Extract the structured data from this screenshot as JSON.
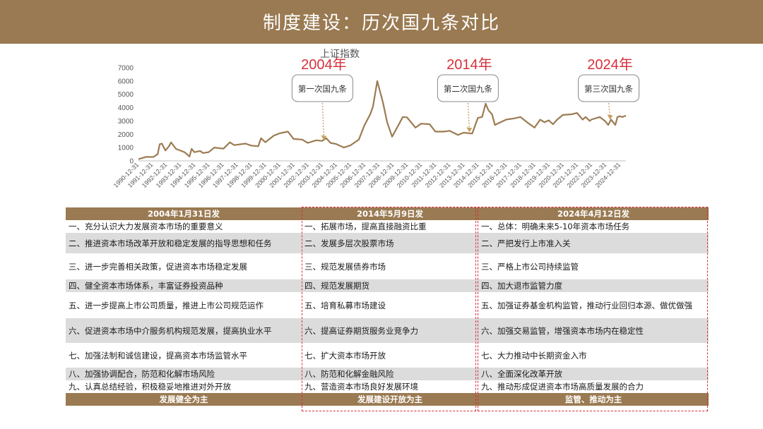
{
  "slide_title": "制度建设：历次国九条对比",
  "chart_data": {
    "type": "line",
    "title": "上证指数",
    "ylim": [
      0,
      7000
    ],
    "yticks": [
      0,
      1000,
      2000,
      3000,
      4000,
      5000,
      6000,
      7000
    ],
    "x_tick_labels": [
      "1990-12-31",
      "1991-12-31",
      "1992-12-31",
      "1993-12-31",
      "1994-12-31",
      "1995-12-31",
      "1996-12-31",
      "1997-12-31",
      "1998-12-31",
      "1999-12-31",
      "2000-12-31",
      "2001-12-31",
      "2002-12-31",
      "2003-12-31",
      "2004-12-31",
      "2005-12-31",
      "2006-12-31",
      "2007-12-31",
      "2008-12-31",
      "2009-12-31",
      "2010-12-31",
      "2011-12-31",
      "2012-12-31",
      "2013-12-31",
      "2014-12-31",
      "2015-12-31",
      "2016-12-31",
      "2017-12-31",
      "2018-12-31",
      "2019-12-31",
      "2020-12-31",
      "2021-12-31",
      "2022-12-31",
      "2023-12-31",
      "2024-12-31"
    ],
    "series": [
      {
        "x": [
          1990.95,
          1991.5,
          1992.0,
          1992.3,
          1992.45,
          1992.6,
          1992.85,
          1993.1,
          1993.25,
          1993.6,
          1994.2,
          1994.55,
          1994.7,
          1994.9,
          1995.3,
          1995.5,
          1995.9,
          1996.3,
          1996.95,
          1997.4,
          1997.7,
          1998.5,
          1998.9,
          1999.4,
          1999.6,
          1999.9,
          2000.5,
          2000.9,
          2001.5,
          2001.9,
          2002.5,
          2002.9,
          2003.5,
          2003.9,
          2004.2,
          2004.5,
          2004.9,
          2005.45,
          2005.9,
          2006.5,
          2006.9,
          2007.3,
          2007.5,
          2007.8,
          2008.2,
          2008.5,
          2008.85,
          2009.3,
          2009.6,
          2009.9,
          2010.5,
          2010.9,
          2011.5,
          2011.9,
          2012.5,
          2012.9,
          2013.5,
          2013.9,
          2014.5,
          2014.9,
          2015.2,
          2015.45,
          2015.65,
          2015.9,
          2016.1,
          2016.5,
          2016.9,
          2017.5,
          2017.9,
          2018.5,
          2018.9,
          2019.3,
          2019.6,
          2019.9,
          2020.2,
          2020.5,
          2020.9,
          2021.5,
          2021.9,
          2022.3,
          2022.5,
          2022.8,
          2022.9,
          2023.5,
          2023.9,
          2024.1,
          2024.3,
          2024.6,
          2024.75,
          2024.9,
          2025.1,
          2025.35
        ],
        "y": [
          127,
          300,
          290,
          500,
          1250,
          1300,
          780,
          1100,
          1390,
          900,
          650,
          330,
          900,
          650,
          750,
          590,
          650,
          1000,
          920,
          1400,
          1180,
          1300,
          1150,
          1100,
          1700,
          1400,
          1900,
          2070,
          2200,
          1650,
          1600,
          1350,
          1550,
          1500,
          1700,
          1350,
          1270,
          1000,
          1160,
          1600,
          2680,
          3500,
          4100,
          6000,
          4400,
          2900,
          1820,
          2700,
          3300,
          3270,
          2500,
          2800,
          2750,
          2200,
          2200,
          2260,
          1950,
          2120,
          2050,
          3230,
          3300,
          4300,
          3800,
          3500,
          2700,
          2900,
          3100,
          3200,
          3300,
          2800,
          2500,
          3100,
          2900,
          3050,
          2750,
          3100,
          3450,
          3500,
          3600,
          3100,
          3300,
          3000,
          3100,
          3300,
          2970,
          2700,
          3100,
          2700,
          3300,
          3350,
          3300,
          3400
        ]
      }
    ],
    "annotations": [
      {
        "year": "2004年",
        "box": "第一次国九条",
        "x": 2004.08,
        "y": 1500
      },
      {
        "year": "2014年",
        "box": "第二次国九条",
        "x": 2014.35,
        "y": 2100
      },
      {
        "year": "2024年",
        "box": "第三次国九条",
        "x": 2024.28,
        "y": 3050
      }
    ]
  },
  "table": {
    "headers": [
      "2004年1月31日发",
      "2014年5月9日发",
      "2024年4月12日发"
    ],
    "rows": [
      [
        "一、充分认识大力发展资本市场的重要意义",
        "一、拓展市场，提高直接融资比重",
        "一、总体：明确未来5-10年资本市场任务"
      ],
      [
        "二、推进资本市场改革开放和稳定发展的指导思想和任务",
        "二、发展多层次股票市场",
        "二、严把发行上市准入关"
      ],
      [
        "三、进一步完善相关政策，促进资本市场稳定发展",
        "三、规范发展债券市场",
        "三、严格上市公司持续监管"
      ],
      [
        "四、健全资本市场体系，丰富证券投资品种",
        "四、规范发展期货",
        "四、加大退市监管力度"
      ],
      [
        "五、进一步提高上市公司质量，推进上市公司规范运作",
        "五、培育私募市场建设",
        "五、加强证券基金机构监管，推动行业回归本源、做优做强"
      ],
      [
        "六、促进资本市场中介服务机构规范发展，提高执业水平",
        "六、提高证券期货服务业竞争力",
        "六、加强交易监管，增强资本市场内在稳定性"
      ],
      [
        "七、加强法制和诚信建设，提高资本市场监管水平",
        "七、扩大资本市场开放",
        "七、大力推动中长期资金入市"
      ],
      [
        "八、加强协调配合，防范和化解市场风险",
        "八、防范和化解金融风险",
        "八、全面深化改革开放"
      ],
      [
        "九、认真总结经验，积极稳妥地推进对外开放",
        "九、营造资本市场良好发展环境",
        "九、推动形成促进资本市场高质量发展的合力"
      ]
    ],
    "footer": [
      "发展健全为主",
      "发展建设开放为主",
      "监管、推动为主"
    ]
  },
  "colors": {
    "brand": "#9a7a52",
    "line": "#9c7b52",
    "annotation_year": "#d6303a",
    "shade": "#dcdcdc"
  }
}
